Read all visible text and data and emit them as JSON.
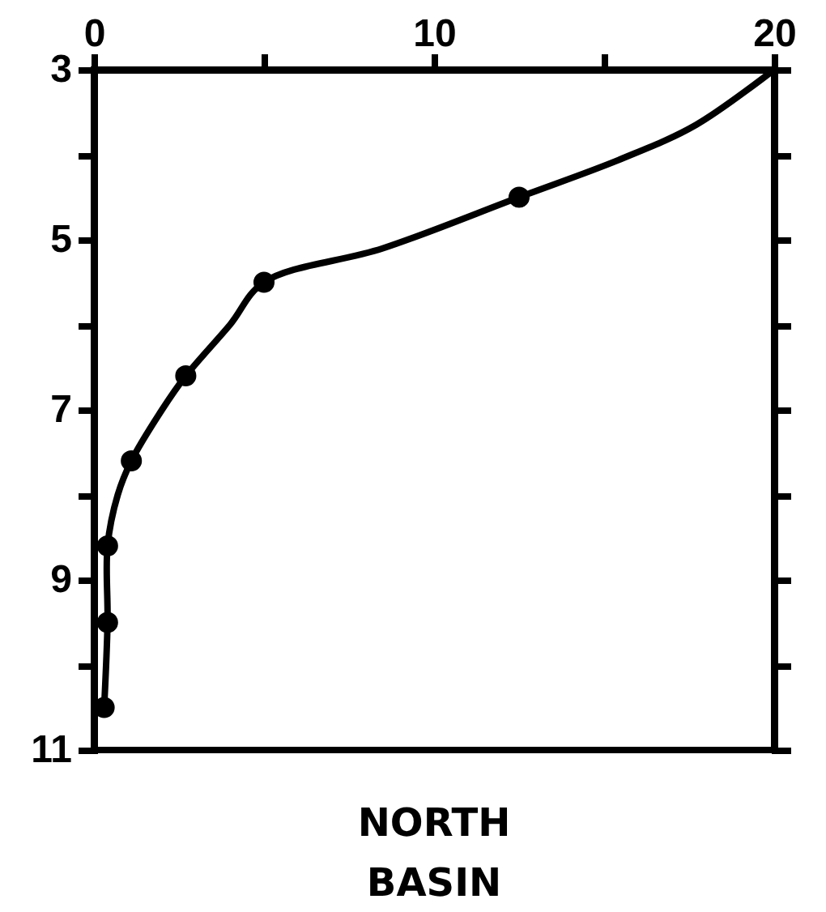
{
  "chart_data": {
    "type": "scatter",
    "title": "NORTH BASIN",
    "xlim": [
      0,
      20
    ],
    "ylim": [
      11,
      3
    ],
    "xticks": [
      0,
      {
        "value": 5,
        "label": null
      },
      10,
      {
        "value": 15,
        "label": null
      },
      20
    ],
    "yticks": [
      3,
      {
        "value": 4,
        "label": null
      },
      5,
      {
        "value": 6,
        "label": null
      },
      7,
      {
        "value": 8,
        "label": null
      },
      9,
      {
        "value": 10,
        "label": null
      },
      11
    ],
    "series": [
      {
        "type": "line",
        "color": "#000000",
        "marker": "none",
        "x": [
          20,
          17.7,
          15.5,
          12.5,
          8.5,
          5,
          4.0,
          2.7,
          2.0,
          1.1,
          0.7,
          0.4,
          0.4,
          0.3
        ],
        "values": [
          3,
          3.65,
          4.05,
          4.5,
          5.1,
          5.5,
          6.0,
          6.6,
          7.0,
          7.6,
          8.0,
          8.6,
          9.5,
          10.5
        ]
      },
      {
        "color": "#000000",
        "marker": "circle",
        "x": [
          12.5,
          5,
          2.7,
          1.1,
          0.4,
          0.4,
          0.3
        ],
        "values": [
          4.5,
          5.5,
          6.6,
          7.6,
          8.6,
          9.5,
          10.5
        ]
      }
    ]
  }
}
